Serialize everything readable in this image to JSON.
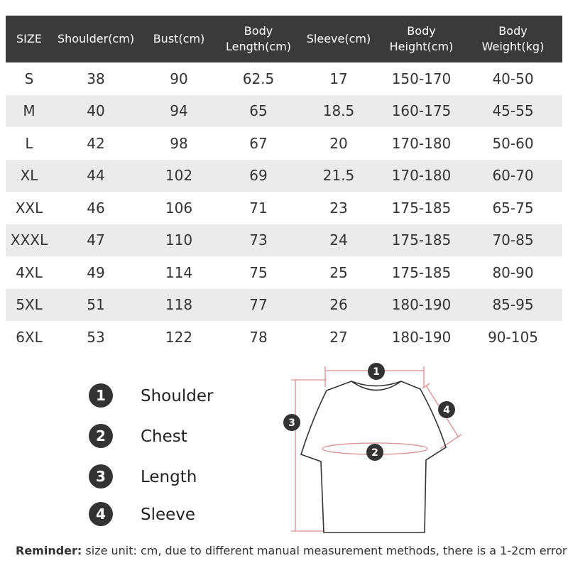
{
  "table": {
    "header": [
      "SIZE",
      "Shoulder(cm)",
      "Bust(cm)",
      "Body Length(cm)",
      "Sleeve(cm)",
      "Body Height(cm)",
      "Body Weight(kg)"
    ],
    "rows": [
      [
        "S",
        "38",
        "90",
        "62.5",
        "17",
        "150-170",
        "40-50"
      ],
      [
        "M",
        "40",
        "94",
        "65",
        "18.5",
        "160-175",
        "45-55"
      ],
      [
        "L",
        "42",
        "98",
        "67",
        "20",
        "170-180",
        "50-60"
      ],
      [
        "XL",
        "44",
        "102",
        "69",
        "21.5",
        "170-180",
        "60-70"
      ],
      [
        "XXL",
        "46",
        "106",
        "71",
        "23",
        "175-185",
        "65-75"
      ],
      [
        "XXXL",
        "47",
        "110",
        "73",
        "24",
        "175-185",
        "70-85"
      ],
      [
        "4XL",
        "49",
        "114",
        "75",
        "25",
        "175-185",
        "80-90"
      ],
      [
        "5XL",
        "51",
        "118",
        "77",
        "26",
        "180-190",
        "85-95"
      ],
      [
        "6XL",
        "53",
        "122",
        "78",
        "27",
        "180-190",
        "90-105"
      ]
    ]
  },
  "legend": [
    {
      "number": "1",
      "label": "Shoulder"
    },
    {
      "number": "2",
      "label": "Chest"
    },
    {
      "number": "3",
      "label": "Length"
    },
    {
      "number": "4",
      "label": "Sleeve"
    }
  ],
  "diagram": {
    "markers": [
      "1",
      "2",
      "3",
      "4"
    ]
  },
  "reminder": {
    "label": "Reminder:",
    "text": "size unit: cm, due to different manual measurement methods, there is a 1-2cm error"
  }
}
